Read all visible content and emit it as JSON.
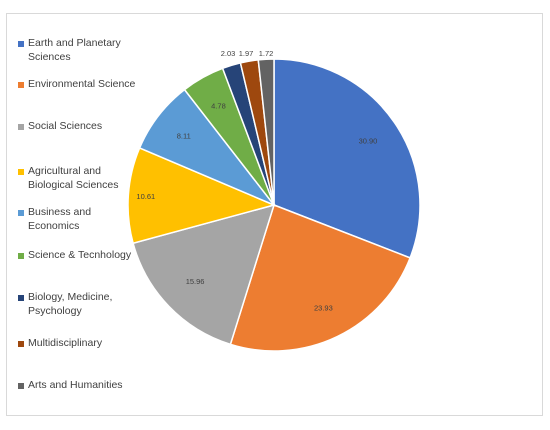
{
  "chart_data": {
    "type": "pie",
    "categories": [
      "Earth and Planetary Sciences",
      "Environmental Science",
      "Social Sciences",
      "Agricultural and Biological Sciences",
      "Business and Economics",
      "Science & Tecnhology",
      "Biology, Medicine, Psychology",
      "Multidisciplinary",
      "Arts and Humanities"
    ],
    "values": [
      30.9,
      23.93,
      15.96,
      10.61,
      8.11,
      4.78,
      2.03,
      1.97,
      1.72
    ],
    "value_labels": [
      "30.90",
      "23.93",
      "15.96",
      "10.61",
      "8.11",
      "4.78",
      "2.03",
      "1.97",
      "1.72"
    ],
    "colors": [
      "#4472C4",
      "#ED7D31",
      "#A5A5A5",
      "#FFC000",
      "#5B9BD5",
      "#70AD47",
      "#264478",
      "#9E480E",
      "#636363"
    ],
    "legend_position": "left",
    "start_angle": "12 o'clock, clockwise"
  },
  "legend": {
    "items": [
      {
        "label": "Earth and Planetary Sciences",
        "lines": [
          "Earth and Planetary",
          "Sciences"
        ]
      },
      {
        "label": "Environmental Science",
        "lines": [
          "Environmental Science"
        ]
      },
      {
        "label": "Social Sciences",
        "lines": [
          "Social Sciences"
        ]
      },
      {
        "label": "Agricultural and Biological Sciences",
        "lines": [
          "Agricultural and",
          "Biological Sciences"
        ]
      },
      {
        "label": "Business and Economics",
        "lines": [
          "Business and",
          "Economics"
        ]
      },
      {
        "label": "Science & Tecnhology",
        "lines": [
          "Science & Tecnhology"
        ]
      },
      {
        "label": "Biology, Medicine, Psychology",
        "lines": [
          "Biology, Medicine,",
          "Psychology"
        ]
      },
      {
        "label": "Multidisciplinary",
        "lines": [
          "Multidisciplinary"
        ]
      },
      {
        "label": "Arts and Humanities",
        "lines": [
          "Arts and Humanities"
        ]
      }
    ]
  }
}
